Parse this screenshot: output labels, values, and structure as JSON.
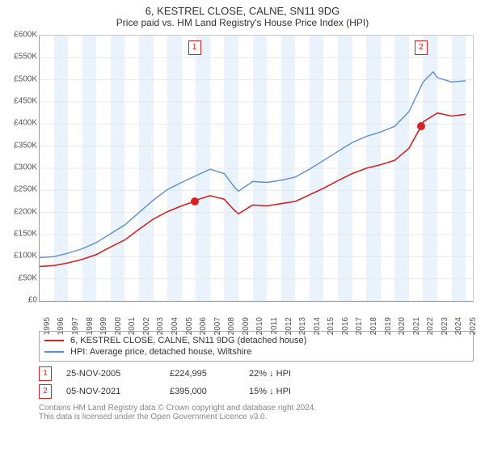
{
  "title": "6, KESTREL CLOSE, CALNE, SN11 9DG",
  "subtitle": "Price paid vs. HM Land Registry's House Price Index (HPI)",
  "chart": {
    "type": "line",
    "x_start_year": 1995,
    "x_end_year": 2025.5,
    "ylim": [
      0,
      600
    ],
    "ytick_step": 50,
    "y_prefix": "£",
    "y_suffix": "K",
    "background_color": "#ffffff",
    "grid_color": "#e8e8e8",
    "band_color": "#eaf2fb",
    "series": [
      {
        "id": "property",
        "label": "6, KESTREL CLOSE, CALNE, SN11 9DG (detached house)",
        "color": "#d62222",
        "width": 1.6,
        "data": [
          [
            1995,
            78
          ],
          [
            1996,
            80
          ],
          [
            1997,
            86
          ],
          [
            1998,
            94
          ],
          [
            1999,
            105
          ],
          [
            2000,
            122
          ],
          [
            2001,
            138
          ],
          [
            2002,
            162
          ],
          [
            2003,
            185
          ],
          [
            2004,
            202
          ],
          [
            2005,
            215
          ],
          [
            2005.9,
            225
          ],
          [
            2006,
            228
          ],
          [
            2007,
            238
          ],
          [
            2008,
            230
          ],
          [
            2008.7,
            205
          ],
          [
            2009,
            197
          ],
          [
            2010,
            217
          ],
          [
            2011,
            215
          ],
          [
            2012,
            220
          ],
          [
            2013,
            225
          ],
          [
            2014,
            240
          ],
          [
            2015,
            255
          ],
          [
            2016,
            272
          ],
          [
            2017,
            288
          ],
          [
            2018,
            300
          ],
          [
            2019,
            308
          ],
          [
            2020,
            318
          ],
          [
            2021,
            345
          ],
          [
            2021.85,
            395
          ],
          [
            2022,
            405
          ],
          [
            2023,
            425
          ],
          [
            2024,
            418
          ],
          [
            2025,
            422
          ]
        ]
      },
      {
        "id": "hpi",
        "label": "HPI: Average price, detached house, Wiltshire",
        "color": "#5a8fd6",
        "width": 1.4,
        "data": [
          [
            1995,
            98
          ],
          [
            1996,
            100
          ],
          [
            1997,
            108
          ],
          [
            1998,
            118
          ],
          [
            1999,
            132
          ],
          [
            2000,
            152
          ],
          [
            2001,
            172
          ],
          [
            2002,
            200
          ],
          [
            2003,
            228
          ],
          [
            2004,
            252
          ],
          [
            2005,
            268
          ],
          [
            2006,
            283
          ],
          [
            2007,
            298
          ],
          [
            2008,
            288
          ],
          [
            2008.7,
            258
          ],
          [
            2009,
            248
          ],
          [
            2010,
            270
          ],
          [
            2011,
            268
          ],
          [
            2012,
            273
          ],
          [
            2013,
            280
          ],
          [
            2014,
            298
          ],
          [
            2015,
            318
          ],
          [
            2016,
            338
          ],
          [
            2017,
            358
          ],
          [
            2018,
            372
          ],
          [
            2019,
            382
          ],
          [
            2020,
            395
          ],
          [
            2021,
            428
          ],
          [
            2022,
            495
          ],
          [
            2022.7,
            518
          ],
          [
            2023,
            505
          ],
          [
            2024,
            495
          ],
          [
            2025,
            498
          ]
        ]
      }
    ],
    "alt_bands_start": 1995,
    "alt_bands_width": 1,
    "markers": [
      {
        "num": "1",
        "year": 2005.9,
        "value": 225,
        "color": "#d62222",
        "box_top": true
      },
      {
        "num": "2",
        "year": 2021.85,
        "value": 395,
        "color": "#d62222",
        "box_top": true
      }
    ]
  },
  "legend": [
    {
      "color": "#d62222",
      "text": "6, KESTREL CLOSE, CALNE, SN11 9DG (detached house)"
    },
    {
      "color": "#5a8fd6",
      "text": "HPI: Average price, detached house, Wiltshire"
    }
  ],
  "transactions": [
    {
      "num": "1",
      "color": "#d62222",
      "date": "25-NOV-2005",
      "price": "£224,995",
      "delta": "22% ↓ HPI"
    },
    {
      "num": "2",
      "color": "#d62222",
      "date": "05-NOV-2021",
      "price": "£395,000",
      "delta": "15% ↓ HPI"
    }
  ],
  "footer": [
    "Contains HM Land Registry data © Crown copyright and database right 2024.",
    "This data is licensed under the Open Government Licence v3.0."
  ]
}
